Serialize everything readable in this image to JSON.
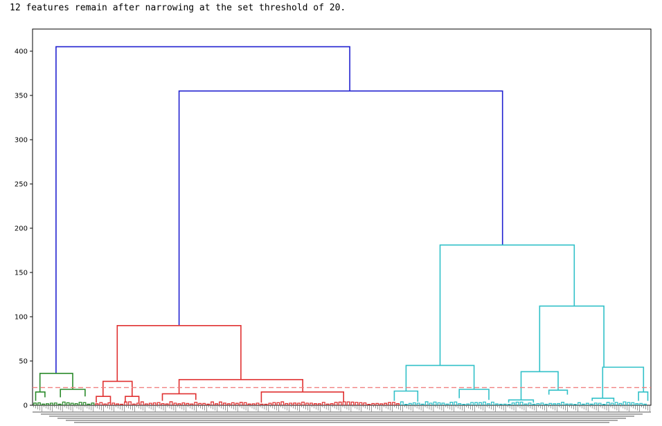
{
  "output": {
    "message": "12 features remain after narrowing at the set threshold of 20."
  },
  "colors": {
    "cluster_green": "#2a8a2a",
    "cluster_red": "#e03030",
    "cluster_cyan": "#30c0c8",
    "above_threshold": "#2020d0",
    "threshold_line": "#f08080",
    "axes": "#000000"
  },
  "chart_data": {
    "type": "dendrogram",
    "title": "",
    "xlabel": "",
    "ylabel": "",
    "ylim": [
      0,
      425
    ],
    "yticks": [
      0,
      50,
      100,
      150,
      200,
      250,
      300,
      350,
      400
    ],
    "xlim": [
      0,
      1
    ],
    "threshold": 20,
    "grid": false,
    "legend": "none",
    "links": [
      {
        "x": [
          0.038,
          0.038,
          0.513,
          0.513
        ],
        "y": [
          36,
          405,
          405,
          355
        ],
        "color": "above_threshold"
      },
      {
        "x": [
          0.237,
          0.237,
          0.76,
          0.76
        ],
        "y": [
          90,
          355,
          355,
          181
        ],
        "color": "above_threshold"
      },
      {
        "x": [
          0.137,
          0.137,
          0.337,
          0.337
        ],
        "y": [
          27,
          90,
          90,
          29
        ],
        "color": "cluster_red"
      },
      {
        "x": [
          0.659,
          0.659,
          0.876,
          0.876
        ],
        "y": [
          45,
          181,
          181,
          112
        ],
        "color": "cluster_cyan"
      },
      {
        "x": [
          0.82,
          0.82,
          0.924,
          0.924
        ],
        "y": [
          38,
          112,
          112,
          43
        ],
        "color": "cluster_cyan"
      },
      {
        "x": [
          0.012,
          0.012,
          0.065,
          0.065
        ],
        "y": [
          15,
          36,
          36,
          18
        ],
        "color": "cluster_green"
      },
      {
        "x": [
          0.114,
          0.114,
          0.161,
          0.161
        ],
        "y": [
          10,
          27,
          27,
          10
        ],
        "color": "cluster_red"
      },
      {
        "x": [
          0.237,
          0.237,
          0.437,
          0.437
        ],
        "y": [
          13,
          29,
          29,
          15
        ],
        "color": "cluster_red"
      },
      {
        "x": [
          0.604,
          0.604,
          0.714,
          0.714
        ],
        "y": [
          16,
          45,
          45,
          18
        ],
        "color": "cluster_cyan"
      },
      {
        "x": [
          0.79,
          0.79,
          0.85,
          0.85
        ],
        "y": [
          6,
          38,
          38,
          17
        ],
        "color": "cluster_cyan"
      },
      {
        "x": [
          0.922,
          0.922,
          0.988,
          0.988
        ],
        "y": [
          8,
          43,
          43,
          15
        ],
        "color": "cluster_cyan"
      },
      {
        "x": [
          0.005,
          0.005,
          0.02,
          0.02
        ],
        "y": [
          5,
          15,
          15,
          9
        ],
        "color": "cluster_green"
      },
      {
        "x": [
          0.045,
          0.045,
          0.085,
          0.085
        ],
        "y": [
          9,
          18,
          18,
          10
        ],
        "color": "cluster_green"
      },
      {
        "x": [
          0.103,
          0.103,
          0.126,
          0.126
        ],
        "y": [
          3,
          10,
          10,
          3
        ],
        "color": "cluster_red"
      },
      {
        "x": [
          0.15,
          0.15,
          0.172,
          0.172
        ],
        "y": [
          3,
          10,
          10,
          3
        ],
        "color": "cluster_red"
      },
      {
        "x": [
          0.21,
          0.21,
          0.264,
          0.264
        ],
        "y": [
          5,
          13,
          13,
          6
        ],
        "color": "cluster_red"
      },
      {
        "x": [
          0.37,
          0.37,
          0.503,
          0.503
        ],
        "y": [
          3,
          15,
          15,
          4
        ],
        "color": "cluster_red"
      },
      {
        "x": [
          0.585,
          0.585,
          0.623,
          0.623
        ],
        "y": [
          5,
          16,
          16,
          4
        ],
        "color": "cluster_cyan"
      },
      {
        "x": [
          0.69,
          0.69,
          0.738,
          0.738
        ],
        "y": [
          8,
          18,
          18,
          6
        ],
        "color": "cluster_cyan"
      },
      {
        "x": [
          0.77,
          0.77,
          0.81,
          0.81
        ],
        "y": [
          3,
          6,
          6,
          3
        ],
        "color": "cluster_cyan"
      },
      {
        "x": [
          0.835,
          0.835,
          0.865,
          0.865
        ],
        "y": [
          12,
          17,
          17,
          12
        ],
        "color": "cluster_cyan"
      },
      {
        "x": [
          0.905,
          0.905,
          0.94,
          0.94
        ],
        "y": [
          5,
          8,
          8,
          4
        ],
        "color": "cluster_cyan"
      },
      {
        "x": [
          0.98,
          0.98,
          0.995,
          0.995
        ],
        "y": [
          5,
          15,
          15,
          5
        ],
        "color": "cluster_cyan"
      }
    ]
  }
}
